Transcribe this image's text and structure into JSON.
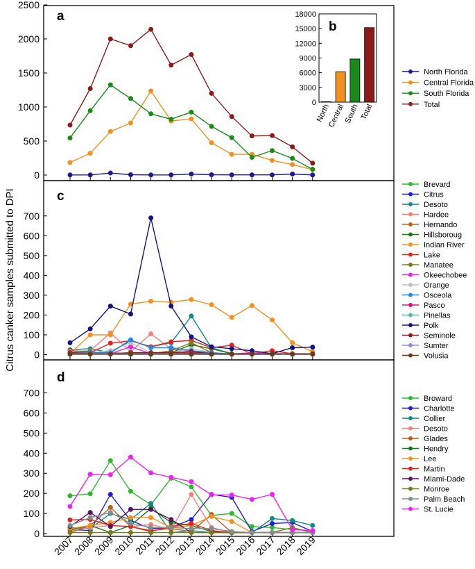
{
  "figure": {
    "ylabel": "Citrus canker samples submitted to DPI",
    "x_ticks": [
      "2007",
      "2008",
      "2009",
      "2010",
      "2011",
      "2012",
      "2013",
      "2014",
      "2015",
      "2016",
      "2017",
      "2018",
      "2019"
    ]
  },
  "chart_data": [
    {
      "id": "a",
      "label": "a",
      "type": "line",
      "x": [
        2007,
        2008,
        2009,
        2010,
        2011,
        2012,
        2013,
        2014,
        2015,
        2016,
        2017,
        2018,
        2019
      ],
      "ylim": [
        0,
        2500
      ],
      "yticks": [
        0,
        500,
        1000,
        1500,
        2000,
        2500
      ],
      "series": [
        {
          "name": "North Florida",
          "color": "#1a1a8c",
          "values": [
            2,
            2,
            30,
            5,
            2,
            2,
            15,
            5,
            3,
            3,
            3,
            15,
            2
          ]
        },
        {
          "name": "Central Florida",
          "color": "#f0901e",
          "values": [
            185,
            320,
            640,
            765,
            1235,
            795,
            825,
            475,
            305,
            305,
            215,
            155,
            80
          ]
        },
        {
          "name": "South Florida",
          "color": "#1a8a1a",
          "values": [
            545,
            945,
            1325,
            1125,
            900,
            820,
            925,
            715,
            550,
            260,
            360,
            245,
            85
          ]
        },
        {
          "name": "Total",
          "color": "#8b1a1a",
          "values": [
            735,
            1270,
            2000,
            1900,
            2140,
            1615,
            1770,
            1200,
            860,
            575,
            580,
            415,
            175
          ]
        }
      ]
    },
    {
      "id": "b",
      "label": "b",
      "type": "bar",
      "categories": [
        "North",
        "Central",
        "South",
        "Total"
      ],
      "values": [
        90,
        6200,
        8800,
        15200
      ],
      "colors": [
        "#1a1a8c",
        "#f0901e",
        "#1a8a1a",
        "#8b1a1a"
      ],
      "ylim": [
        0,
        18000
      ],
      "yticks": [
        0,
        3000,
        6000,
        9000,
        12000,
        15000,
        18000
      ]
    },
    {
      "id": "c",
      "label": "c",
      "type": "line",
      "x": [
        2007,
        2008,
        2009,
        2010,
        2011,
        2012,
        2013,
        2014,
        2015,
        2016,
        2017,
        2018,
        2019
      ],
      "ylim": [
        0,
        750
      ],
      "yticks": [
        0,
        100,
        200,
        300,
        400,
        500,
        600,
        700
      ],
      "series": [
        {
          "name": "Brevard",
          "color": "#2eb82e",
          "values": [
            5,
            3,
            3,
            3,
            3,
            2,
            2,
            2,
            2,
            2,
            2,
            2,
            2
          ]
        },
        {
          "name": "Citrus",
          "color": "#1f1fd6",
          "values": [
            2,
            2,
            2,
            2,
            2,
            2,
            2,
            2,
            2,
            2,
            2,
            2,
            2
          ]
        },
        {
          "name": "Desoto",
          "color": "#128a8a",
          "values": [
            25,
            30,
            10,
            70,
            40,
            60,
            195,
            35,
            5,
            5,
            3,
            3,
            3
          ]
        },
        {
          "name": "Hardee",
          "color": "#f08080",
          "values": [
            15,
            20,
            110,
            15,
            105,
            30,
            15,
            5,
            3,
            3,
            3,
            3,
            3
          ]
        },
        {
          "name": "Hernando",
          "color": "#b8601a",
          "values": [
            2,
            2,
            2,
            2,
            2,
            2,
            2,
            2,
            2,
            2,
            2,
            2,
            2
          ]
        },
        {
          "name": "Hillsboroug",
          "color": "#1a7a1a",
          "values": [
            20,
            15,
            5,
            5,
            10,
            10,
            50,
            30,
            5,
            5,
            5,
            5,
            3
          ]
        },
        {
          "name": "Indian River",
          "color": "#f5901e",
          "values": [
            5,
            100,
            100,
            255,
            270,
            265,
            278,
            252,
            188,
            248,
            175,
            60,
            15
          ]
        },
        {
          "name": "Lake",
          "color": "#e62020",
          "values": [
            20,
            10,
            58,
            70,
            40,
            65,
            72,
            35,
            48,
            5,
            20,
            5,
            5
          ]
        },
        {
          "name": "Manatee",
          "color": "#7a7a1a",
          "values": [
            10,
            5,
            10,
            5,
            5,
            20,
            60,
            10,
            3,
            3,
            3,
            3,
            3
          ]
        },
        {
          "name": "Okeechobee",
          "color": "#e620e6",
          "values": [
            5,
            5,
            5,
            40,
            5,
            10,
            15,
            5,
            3,
            10,
            5,
            5,
            3
          ]
        },
        {
          "name": "Orange",
          "color": "#bfbfbf",
          "values": [
            15,
            10,
            20,
            60,
            10,
            10,
            30,
            10,
            3,
            3,
            3,
            3,
            3
          ]
        },
        {
          "name": "Osceola",
          "color": "#1f8ae6",
          "values": [
            10,
            10,
            10,
            75,
            35,
            35,
            20,
            10,
            3,
            3,
            3,
            3,
            3
          ]
        },
        {
          "name": "Pasco",
          "color": "#d6147a",
          "values": [
            5,
            5,
            5,
            5,
            5,
            5,
            10,
            5,
            3,
            3,
            3,
            3,
            3
          ]
        },
        {
          "name": "Pinellas",
          "color": "#5ab89a",
          "values": [
            2,
            2,
            2,
            2,
            2,
            2,
            2,
            2,
            2,
            2,
            2,
            2,
            2
          ]
        },
        {
          "name": "Polk",
          "color": "#141480",
          "values": [
            60,
            130,
            245,
            205,
            690,
            245,
            90,
            40,
            30,
            20,
            5,
            35,
            38
          ]
        },
        {
          "name": "Seminole",
          "color": "#8a1a1a",
          "values": [
            10,
            5,
            5,
            10,
            10,
            10,
            15,
            5,
            3,
            3,
            3,
            3,
            3
          ]
        },
        {
          "name": "Sumter",
          "color": "#8a8ad6",
          "values": [
            5,
            5,
            5,
            5,
            5,
            5,
            5,
            5,
            3,
            3,
            3,
            3,
            3
          ]
        },
        {
          "name": "Volusia",
          "color": "#6b3a14",
          "values": [
            3,
            3,
            3,
            3,
            3,
            3,
            3,
            3,
            3,
            3,
            3,
            3,
            3
          ]
        }
      ]
    },
    {
      "id": "d",
      "label": "d",
      "type": "line",
      "x": [
        2007,
        2008,
        2009,
        2010,
        2011,
        2012,
        2013,
        2014,
        2015,
        2016,
        2017,
        2018,
        2019
      ],
      "ylim": [
        0,
        750
      ],
      "yticks": [
        0,
        100,
        200,
        300,
        400,
        500,
        600,
        700
      ],
      "series": [
        {
          "name": "Broward",
          "color": "#2eb82e",
          "values": [
            188,
            198,
            363,
            210,
            143,
            275,
            232,
            90,
            100,
            35,
            30,
            20,
            15
          ]
        },
        {
          "name": "Charlotte",
          "color": "#1f1fd6",
          "values": [
            20,
            15,
            195,
            65,
            25,
            30,
            70,
            195,
            180,
            10,
            50,
            55,
            10
          ]
        },
        {
          "name": "Collier",
          "color": "#128a8a",
          "values": [
            30,
            25,
            100,
            70,
            150,
            5,
            15,
            5,
            5,
            5,
            75,
            65,
            40
          ]
        },
        {
          "name": "Desoto",
          "color": "#f08080",
          "values": [
            15,
            30,
            40,
            35,
            45,
            20,
            195,
            30,
            5,
            5,
            5,
            5,
            5
          ]
        },
        {
          "name": "Glades",
          "color": "#b8601a",
          "values": [
            5,
            40,
            130,
            35,
            15,
            25,
            10,
            95,
            5,
            5,
            5,
            5,
            5
          ]
        },
        {
          "name": "Hendry",
          "color": "#1a7a1a",
          "values": [
            20,
            40,
            5,
            40,
            125,
            55,
            40,
            10,
            5,
            5,
            5,
            5,
            5
          ]
        },
        {
          "name": "Lee",
          "color": "#f5901e",
          "values": [
            25,
            40,
            55,
            80,
            80,
            30,
            40,
            85,
            60,
            5,
            5,
            5,
            5
          ]
        },
        {
          "name": "Martin",
          "color": "#e62020",
          "values": [
            68,
            70,
            40,
            35,
            10,
            35,
            50,
            15,
            5,
            5,
            5,
            5,
            5
          ]
        },
        {
          "name": "Miami-Dade",
          "color": "#5a145a",
          "values": [
            35,
            105,
            35,
            120,
            120,
            70,
            5,
            5,
            5,
            5,
            5,
            5,
            5
          ]
        },
        {
          "name": "Monroe",
          "color": "#7a7a1a",
          "values": [
            5,
            5,
            5,
            5,
            5,
            5,
            5,
            5,
            5,
            5,
            5,
            30,
            5
          ]
        },
        {
          "name": "Palm Beach",
          "color": "#7f8f8f",
          "values": [
            40,
            80,
            105,
            50,
            30,
            30,
            25,
            25,
            10,
            5,
            5,
            5,
            5
          ]
        },
        {
          "name": "St. Lucie",
          "color": "#f020f0",
          "values": [
            135,
            295,
            293,
            380,
            302,
            280,
            258,
            193,
            192,
            170,
            195,
            20,
            15
          ]
        }
      ]
    }
  ]
}
